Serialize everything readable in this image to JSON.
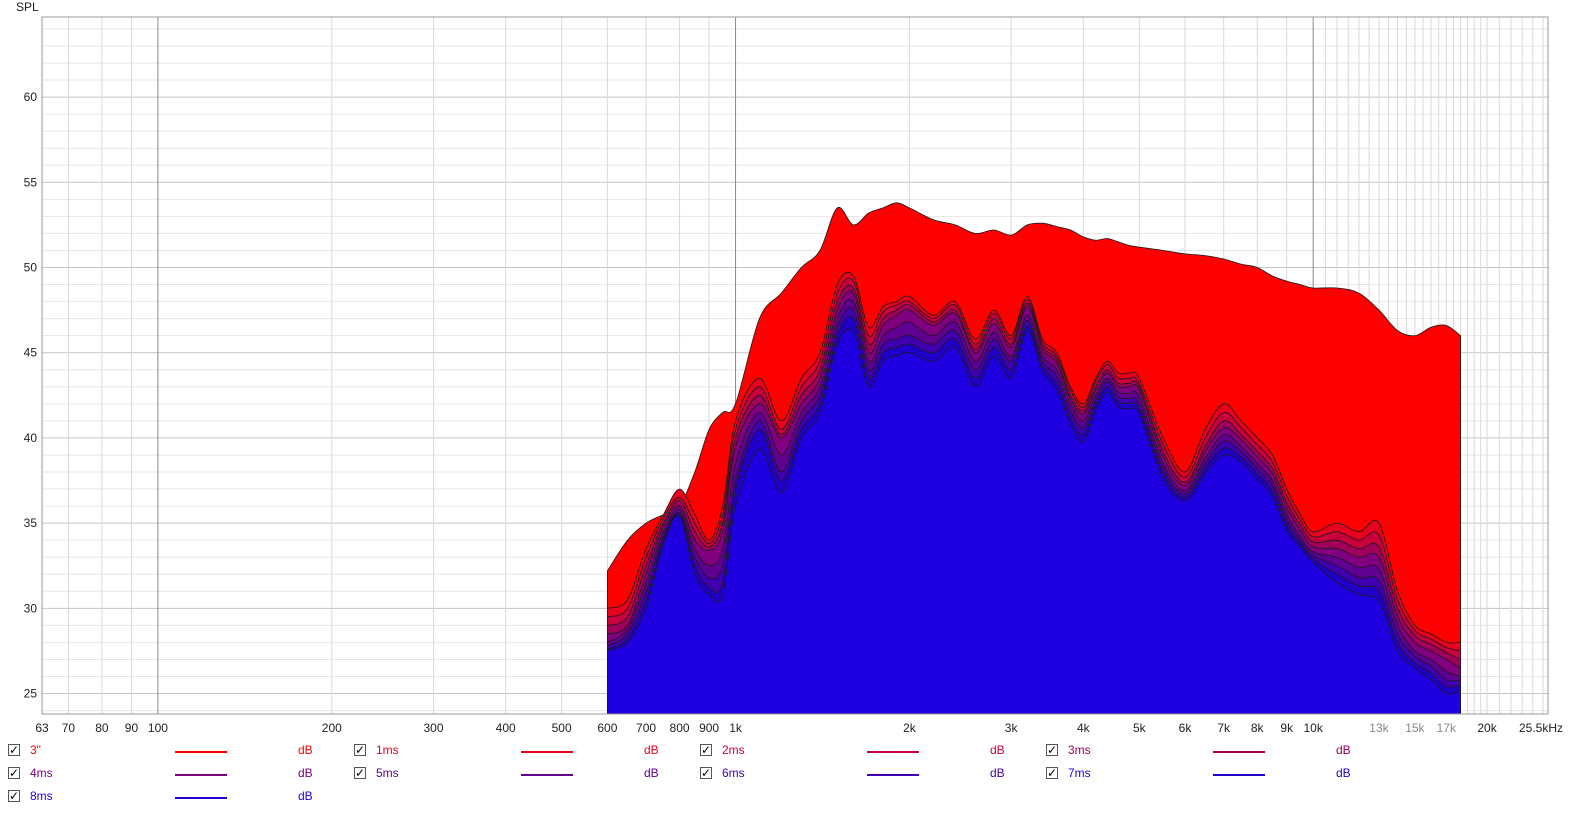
{
  "chart_data": {
    "type": "area",
    "ylabel": "SPL",
    "y_unit": "dB",
    "x_scale": "log",
    "xlim": [
      63,
      25500
    ],
    "ylim": [
      23.8,
      64.7
    ],
    "grid": true,
    "y_ticks": [
      {
        "value": 25,
        "label": "25"
      },
      {
        "value": 30,
        "label": "30"
      },
      {
        "value": 35,
        "label": "35"
      },
      {
        "value": 40,
        "label": "40"
      },
      {
        "value": 45,
        "label": "45"
      },
      {
        "value": 50,
        "label": "50"
      },
      {
        "value": 55,
        "label": "55"
      },
      {
        "value": 60,
        "label": "60"
      }
    ],
    "x_ticks": [
      {
        "value": 63,
        "label": "63"
      },
      {
        "value": 70,
        "label": "70"
      },
      {
        "value": 80,
        "label": "80"
      },
      {
        "value": 90,
        "label": "90"
      },
      {
        "value": 100,
        "label": "100"
      },
      {
        "value": 200,
        "label": "200"
      },
      {
        "value": 300,
        "label": "300"
      },
      {
        "value": 400,
        "label": "400"
      },
      {
        "value": 500,
        "label": "500"
      },
      {
        "value": 600,
        "label": "600"
      },
      {
        "value": 700,
        "label": "700"
      },
      {
        "value": 800,
        "label": "800"
      },
      {
        "value": 900,
        "label": "900"
      },
      {
        "value": 1000,
        "label": "1k"
      },
      {
        "value": 2000,
        "label": "2k"
      },
      {
        "value": 3000,
        "label": "3k"
      },
      {
        "value": 4000,
        "label": "4k"
      },
      {
        "value": 5000,
        "label": "5k"
      },
      {
        "value": 6000,
        "label": "6k"
      },
      {
        "value": 7000,
        "label": "7k"
      },
      {
        "value": 8000,
        "label": "8k"
      },
      {
        "value": 9000,
        "label": "9k"
      },
      {
        "value": 10000,
        "label": "10k"
      },
      {
        "value": 13000,
        "label": "13k",
        "faint": true
      },
      {
        "value": 15000,
        "label": "15k",
        "faint": true
      },
      {
        "value": 17000,
        "label": "17k",
        "faint": true
      },
      {
        "value": 20000,
        "label": "20k"
      },
      {
        "value": 25500,
        "label": "25.5kHz"
      }
    ],
    "x": [
      600,
      650,
      700,
      750,
      800,
      850,
      900,
      950,
      1000,
      1100,
      1200,
      1300,
      1400,
      1500,
      1600,
      1700,
      1800,
      1900,
      2000,
      2200,
      2400,
      2600,
      2800,
      3000,
      3200,
      3400,
      3600,
      3800,
      4000,
      4200,
      4400,
      4600,
      4800,
      5000,
      5500,
      6000,
      6500,
      7000,
      7500,
      8000,
      8500,
      9000,
      9500,
      10000,
      11000,
      12000,
      13000,
      14000,
      15000,
      16000,
      17000,
      18000
    ],
    "series": [
      {
        "name": "3\"",
        "color": "#ff0000",
        "values": [
          32.2,
          34.0,
          35.0,
          35.5,
          36.0,
          38.0,
          40.5,
          41.5,
          42.0,
          47.0,
          48.5,
          50.0,
          51.0,
          53.5,
          52.5,
          53.2,
          53.5,
          53.8,
          53.5,
          52.8,
          52.5,
          52.0,
          52.2,
          51.9,
          52.5,
          52.6,
          52.4,
          52.2,
          51.8,
          51.6,
          51.7,
          51.5,
          51.3,
          51.2,
          51.0,
          50.8,
          50.7,
          50.5,
          50.2,
          50.0,
          49.5,
          49.2,
          49.0,
          48.8,
          48.8,
          48.5,
          47.5,
          46.3,
          46.0,
          46.5,
          46.6,
          46.0
        ]
      },
      {
        "name": "1ms",
        "color": "#e8001e",
        "values": [
          30.0,
          30.5,
          33.5,
          35.5,
          37.0,
          35.5,
          34.0,
          36.0,
          41.0,
          43.5,
          41.0,
          43.5,
          45.0,
          49.0,
          49.5,
          46.5,
          47.7,
          48.0,
          48.3,
          47.2,
          48.0,
          45.8,
          47.5,
          46.0,
          48.3,
          45.8,
          45.0,
          43.0,
          42.0,
          43.5,
          44.5,
          43.8,
          43.8,
          43.5,
          40.0,
          38.0,
          40.5,
          42.0,
          41.0,
          40.0,
          39.0,
          37.0,
          35.5,
          34.5,
          35.0,
          34.5,
          35.0,
          31.0,
          29.0,
          28.5,
          28.0,
          28.0
        ]
      },
      {
        "name": "2ms",
        "color": "#c8003c",
        "values": [
          29.5,
          30.0,
          33.0,
          35.3,
          36.5,
          35.0,
          33.8,
          35.5,
          40.5,
          43.0,
          40.5,
          43.0,
          44.5,
          48.5,
          49.2,
          46.0,
          47.4,
          47.8,
          48.0,
          47.0,
          47.8,
          45.5,
          47.3,
          45.8,
          48.1,
          45.6,
          44.8,
          42.8,
          41.8,
          43.3,
          44.3,
          43.5,
          43.5,
          43.2,
          39.6,
          37.7,
          40.0,
          41.5,
          40.6,
          39.6,
          38.6,
          36.6,
          35.2,
          34.2,
          34.5,
          34.0,
          34.3,
          30.5,
          28.7,
          28.2,
          27.7,
          27.5
        ]
      },
      {
        "name": "3ms",
        "color": "#a0005a",
        "values": [
          29.0,
          29.5,
          32.5,
          35.0,
          36.3,
          34.5,
          33.6,
          35.0,
          40.0,
          42.5,
          40.2,
          42.5,
          44.0,
          48.0,
          48.8,
          45.5,
          47.0,
          47.5,
          47.8,
          46.8,
          47.5,
          45.2,
          47.0,
          45.5,
          47.9,
          45.4,
          44.6,
          42.5,
          41.6,
          43.0,
          44.0,
          43.2,
          43.2,
          43.0,
          39.2,
          37.4,
          39.5,
          41.0,
          40.2,
          39.2,
          38.2,
          36.2,
          34.9,
          33.9,
          34.0,
          33.5,
          33.6,
          30.0,
          28.4,
          27.9,
          27.4,
          27.0
        ]
      },
      {
        "name": "4ms",
        "color": "#800080",
        "values": [
          28.5,
          29.0,
          32.0,
          34.8,
          36.0,
          34.0,
          33.4,
          34.5,
          39.5,
          42.0,
          40.0,
          42.0,
          43.5,
          47.5,
          48.5,
          45.0,
          46.6,
          47.2,
          47.5,
          46.6,
          47.3,
          45.0,
          46.7,
          45.3,
          47.7,
          45.2,
          44.4,
          42.3,
          41.4,
          42.8,
          43.8,
          43.0,
          43.0,
          42.8,
          38.9,
          37.2,
          39.2,
          40.6,
          39.9,
          38.9,
          37.9,
          35.9,
          34.6,
          33.6,
          33.5,
          33.0,
          33.0,
          29.5,
          28.0,
          27.5,
          27.0,
          26.5
        ]
      },
      {
        "name": "5ms",
        "color": "#600090",
        "values": [
          28.0,
          28.8,
          31.5,
          34.5,
          35.8,
          33.5,
          32.5,
          33.5,
          38.5,
          41.5,
          39.0,
          41.5,
          43.0,
          47.0,
          48.0,
          44.5,
          46.0,
          46.5,
          46.8,
          46.0,
          46.8,
          44.5,
          46.2,
          44.8,
          47.2,
          44.8,
          44.0,
          42.0,
          41.0,
          42.5,
          43.5,
          42.7,
          42.6,
          42.4,
          38.5,
          36.9,
          38.8,
          40.2,
          39.5,
          38.5,
          37.5,
          35.5,
          34.2,
          33.3,
          33.0,
          32.4,
          32.3,
          29.0,
          27.5,
          27.0,
          26.3,
          26.0
        ]
      },
      {
        "name": "6ms",
        "color": "#4000b0",
        "values": [
          27.8,
          28.5,
          31.0,
          34.2,
          35.6,
          33.0,
          31.8,
          32.5,
          37.5,
          41.0,
          38.0,
          41.0,
          42.5,
          46.5,
          47.5,
          44.0,
          45.5,
          45.8,
          46.0,
          45.5,
          46.3,
          44.0,
          45.8,
          44.5,
          46.9,
          44.5,
          43.6,
          41.6,
          40.6,
          42.2,
          43.3,
          42.4,
          42.3,
          42.0,
          38.2,
          36.7,
          38.5,
          39.8,
          39.2,
          38.2,
          37.2,
          35.2,
          34.0,
          33.1,
          32.5,
          31.8,
          31.6,
          28.5,
          27.2,
          26.6,
          25.8,
          25.8
        ]
      },
      {
        "name": "7ms",
        "color": "#2000c8",
        "values": [
          27.6,
          28.2,
          30.5,
          34.0,
          35.5,
          32.5,
          31.2,
          31.5,
          37.0,
          40.5,
          37.5,
          40.5,
          42.0,
          46.0,
          47.0,
          43.5,
          45.0,
          45.3,
          45.5,
          45.0,
          45.8,
          43.5,
          45.3,
          44.0,
          46.6,
          44.2,
          43.2,
          41.2,
          40.2,
          41.9,
          43.0,
          42.1,
          42.0,
          41.7,
          37.9,
          36.5,
          38.2,
          39.4,
          38.9,
          37.9,
          36.9,
          34.9,
          33.8,
          32.9,
          32.0,
          31.3,
          31.0,
          28.0,
          26.8,
          26.2,
          25.4,
          25.5
        ]
      },
      {
        "name": "8ms",
        "color": "#1e00e0",
        "values": [
          27.5,
          28.0,
          30.0,
          33.8,
          35.4,
          32.0,
          30.8,
          30.8,
          36.0,
          39.3,
          36.8,
          40.0,
          41.5,
          45.5,
          46.2,
          43.0,
          44.5,
          44.8,
          45.0,
          44.5,
          45.3,
          43.0,
          44.8,
          43.5,
          46.3,
          43.9,
          42.8,
          40.8,
          39.8,
          41.6,
          42.7,
          41.8,
          41.7,
          41.4,
          37.6,
          36.3,
          37.9,
          39.0,
          38.6,
          37.6,
          36.6,
          34.6,
          33.6,
          32.7,
          31.5,
          30.8,
          30.4,
          27.5,
          26.5,
          25.8,
          25.0,
          25.2
        ]
      }
    ]
  },
  "legend": {
    "unit": "dB",
    "items": [
      {
        "name": "3\"",
        "color": "#ff0000",
        "checkmark": "✓"
      },
      {
        "name": "1ms",
        "color": "#e8001e",
        "checkmark": "✓"
      },
      {
        "name": "2ms",
        "color": "#c8003c",
        "checkmark": "✓"
      },
      {
        "name": "3ms",
        "color": "#a0005a",
        "checkmark": "✓"
      },
      {
        "name": "4ms",
        "color": "#800080",
        "checkmark": "✓"
      },
      {
        "name": "5ms",
        "color": "#600090",
        "checkmark": "✓"
      },
      {
        "name": "6ms",
        "color": "#4000b0",
        "checkmark": "✓"
      },
      {
        "name": "7ms",
        "color": "#2000c8",
        "checkmark": "✓"
      },
      {
        "name": "8ms",
        "color": "#1e00e0",
        "checkmark": "✓"
      }
    ]
  }
}
